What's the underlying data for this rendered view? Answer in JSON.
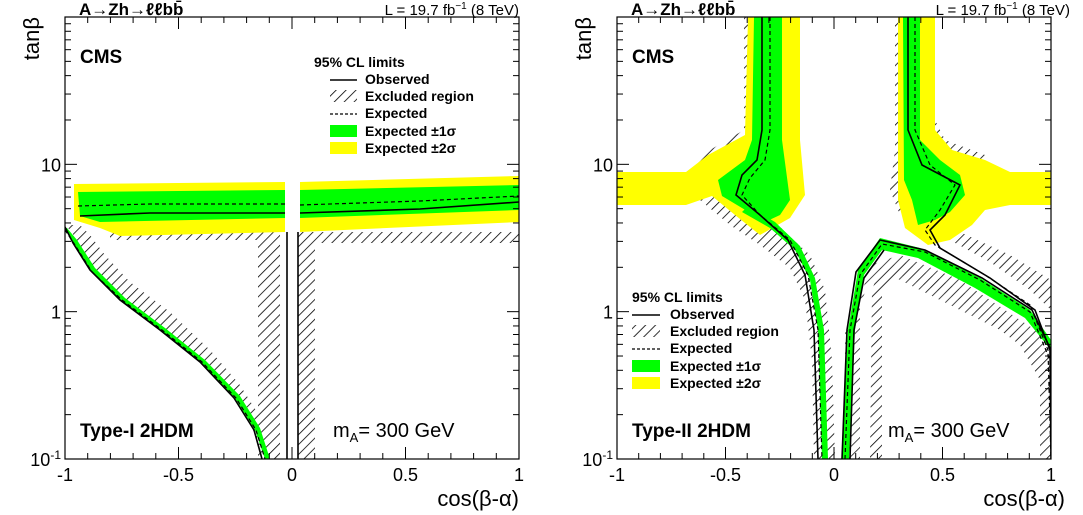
{
  "colors": {
    "sigma1": "#00ff00",
    "sigma2": "#ffff00",
    "observed": "#000000",
    "expected": "#000000"
  },
  "chart_data": [
    {
      "id": "type1",
      "type": "line",
      "process": "A→Zh→ℓℓbb̄",
      "luminosity": "L = 19.7 fb",
      "lumi_exp": "−1",
      "energy": "(8 TeV)",
      "experiment": "CMS",
      "model": "Type-I 2HDM",
      "mass_label_a": "m",
      "mass_label_sub": "A",
      "mass_label_b": "= 300 GeV",
      "xlabel": "cos(β-α)",
      "ylabel": "tanβ",
      "xlim": [
        -1,
        1
      ],
      "ylim": [
        0.1,
        100
      ],
      "log_y": true,
      "x_ticks": [
        {
          "v": -1,
          "t": "-1"
        },
        {
          "v": -0.5,
          "t": "-0.5"
        },
        {
          "v": 0,
          "t": "0"
        },
        {
          "v": 0.5,
          "t": "0.5"
        },
        {
          "v": 1,
          "t": "1"
        }
      ],
      "y_ticks": [
        {
          "v": 0.1,
          "t": "10",
          "sup": "-1"
        },
        {
          "v": 1,
          "t": "1"
        },
        {
          "v": 10,
          "t": "10"
        }
      ],
      "legend": {
        "title": "95% CL limits",
        "observed": "Observed",
        "excluded": "Excluded region",
        "expected": "Expected",
        "sigma1": "Expected ±1σ",
        "sigma2": "Expected ±2σ"
      },
      "observed": [
        {
          "name": "upper-left",
          "points": [
            [
              -0.96,
              4.9
            ],
            [
              -0.8,
              4.95
            ],
            [
              -0.6,
              5.0
            ],
            [
              -0.4,
              5.0
            ],
            [
              -0.2,
              5.0
            ],
            [
              -0.05,
              5.0
            ]
          ]
        },
        {
          "name": "upper-right",
          "points": [
            [
              0.05,
              4.8
            ],
            [
              0.3,
              4.8
            ],
            [
              0.6,
              4.9
            ],
            [
              0.8,
              5.0
            ],
            [
              1.0,
              5.3
            ]
          ]
        },
        {
          "name": "lower-left",
          "points": [
            [
              -1.0,
              3.3
            ],
            [
              -0.98,
              2.2
            ],
            [
              -0.93,
              1.5
            ],
            [
              -0.85,
              1.1
            ],
            [
              -0.75,
              0.85
            ],
            [
              -0.6,
              0.62
            ],
            [
              -0.4,
              0.42
            ],
            [
              -0.25,
              0.28
            ],
            [
              -0.15,
              0.16
            ],
            [
              -0.1,
              0.1
            ]
          ]
        },
        {
          "name": "center-left",
          "points": [
            [
              -0.04,
              0.1
            ],
            [
              -0.04,
              3.2
            ]
          ]
        },
        {
          "name": "center-right",
          "points": [
            [
              0.03,
              0.1
            ],
            [
              0.03,
              3.2
            ]
          ]
        }
      ],
      "expected": [
        {
          "name": "upper-left",
          "points": [
            [
              -0.95,
              5.4
            ],
            [
              -0.7,
              5.6
            ],
            [
              -0.4,
              5.7
            ],
            [
              -0.05,
              5.7
            ]
          ]
        },
        {
          "name": "upper-right",
          "points": [
            [
              0.05,
              5.6
            ],
            [
              0.4,
              5.7
            ],
            [
              0.8,
              5.9
            ],
            [
              1.0,
              6.2
            ]
          ]
        },
        {
          "name": "lower-left",
          "points": [
            [
              -1.0,
              3.5
            ],
            [
              -0.98,
              2.3
            ],
            [
              -0.93,
              1.6
            ],
            [
              -0.85,
              1.15
            ],
            [
              -0.75,
              0.88
            ],
            [
              -0.6,
              0.65
            ],
            [
              -0.4,
              0.44
            ],
            [
              -0.25,
              0.29
            ],
            [
              -0.15,
              0.17
            ],
            [
              -0.1,
              0.1
            ]
          ]
        }
      ],
      "band_1sigma": [
        {
          "name": "upper-left",
          "low": [
            [
              -0.96,
              4.6
            ],
            [
              -0.6,
              4.6
            ],
            [
              -0.05,
              4.5
            ]
          ],
          "high": [
            [
              -0.96,
              6.8
            ],
            [
              -0.6,
              7.0
            ],
            [
              -0.05,
              7.0
            ]
          ]
        },
        {
          "name": "upper-right",
          "low": [
            [
              0.05,
              4.5
            ],
            [
              0.5,
              4.6
            ],
            [
              1.0,
              5.0
            ]
          ],
          "high": [
            [
              0.05,
              6.9
            ],
            [
              0.5,
              7.1
            ],
            [
              1.0,
              7.5
            ]
          ]
        }
      ],
      "band_2sigma": [
        {
          "name": "upper-left",
          "low": [
            [
              -0.97,
              3.9
            ],
            [
              -0.6,
              4.0
            ],
            [
              -0.05,
              3.9
            ]
          ],
          "high": [
            [
              -0.97,
              7.6
            ],
            [
              -0.6,
              7.8
            ],
            [
              -0.05,
              7.8
            ]
          ]
        },
        {
          "name": "upper-right",
          "low": [
            [
              0.05,
              3.9
            ],
            [
              0.5,
              4.0
            ],
            [
              1.0,
              4.3
            ]
          ],
          "high": [
            [
              0.05,
              7.7
            ],
            [
              0.5,
              8.0
            ],
            [
              1.0,
              8.5
            ]
          ]
        }
      ]
    },
    {
      "id": "type2",
      "type": "line",
      "process": "A→Zh→ℓℓbb̄",
      "luminosity": "L = 19.7 fb",
      "lumi_exp": "−1",
      "energy": "(8 TeV)",
      "experiment": "CMS",
      "model": "Type-II 2HDM",
      "mass_label_a": "m",
      "mass_label_sub": "A",
      "mass_label_b": "= 300 GeV",
      "xlabel": "cos(β-α)",
      "ylabel": "tanβ",
      "xlim": [
        -1,
        1
      ],
      "ylim": [
        0.1,
        100
      ],
      "log_y": true,
      "x_ticks": [
        {
          "v": -1,
          "t": "-1"
        },
        {
          "v": -0.5,
          "t": "-0.5"
        },
        {
          "v": 0,
          "t": "0"
        },
        {
          "v": 0.5,
          "t": "0.5"
        },
        {
          "v": 1,
          "t": "1"
        }
      ],
      "y_ticks": [
        {
          "v": 0.1,
          "t": "10",
          "sup": "-1"
        },
        {
          "v": 1,
          "t": "1"
        },
        {
          "v": 10,
          "t": "10"
        }
      ],
      "legend": {
        "title": "95% CL limits",
        "observed": "Observed",
        "excluded": "Excluded region",
        "expected": "Expected",
        "sigma1": "Expected ±1σ",
        "sigma2": "Expected ±2σ"
      },
      "observed": [
        {
          "name": "left-tongue",
          "points": [
            [
              -0.3,
              100
            ],
            [
              -0.3,
              30
            ],
            [
              -0.31,
              15
            ],
            [
              -0.33,
              9
            ],
            [
              -0.42,
              7.2
            ],
            [
              -0.5,
              6.2
            ],
            [
              -0.48,
              5.2
            ],
            [
              -0.4,
              4.5
            ],
            [
              -0.28,
              3.3
            ],
            [
              -0.17,
              1.8
            ],
            [
              -0.1,
              0.7
            ],
            [
              -0.06,
              0.1
            ]
          ]
        },
        {
          "name": "right-tongue",
          "points": [
            [
              0.28,
              100
            ],
            [
              0.28,
              30
            ],
            [
              0.3,
              15
            ],
            [
              0.33,
              10
            ],
            [
              0.45,
              8.0
            ],
            [
              0.57,
              6.8
            ],
            [
              0.5,
              5.5
            ],
            [
              0.4,
              4.4
            ],
            [
              0.35,
              3.5
            ],
            [
              0.45,
              2.4
            ],
            [
              0.6,
              1.7
            ],
            [
              0.8,
              1.05
            ],
            [
              0.92,
              0.6
            ],
            [
              0.97,
              0.3
            ],
            [
              1.0,
              0.12
            ]
          ]
        },
        {
          "name": "center-left",
          "points": [
            [
              0.02,
              0.1
            ],
            [
              0.03,
              1.5
            ],
            [
              0.05,
              2.3
            ]
          ]
        },
        {
          "name": "center-right",
          "points": [
            [
              0.05,
              2.3
            ],
            [
              0.1,
              2.9
            ],
            [
              0.2,
              2.7
            ],
            [
              0.4,
              2.1
            ],
            [
              0.6,
              1.5
            ],
            [
              0.8,
              0.95
            ],
            [
              0.92,
              0.55
            ],
            [
              0.98,
              0.25
            ],
            [
              1.0,
              0.12
            ]
          ]
        }
      ],
      "expected": [
        {
          "name": "left-tongue",
          "points": [
            [
              -0.27,
              100
            ],
            [
              -0.27,
              30
            ],
            [
              -0.28,
              15
            ],
            [
              -0.3,
              9
            ],
            [
              -0.38,
              7.3
            ],
            [
              -0.45,
              6.5
            ],
            [
              -0.44,
              5.3
            ],
            [
              -0.37,
              4.6
            ],
            [
              -0.26,
              3.4
            ],
            [
              -0.16,
              1.9
            ],
            [
              -0.09,
              0.8
            ],
            [
              -0.05,
              0.1
            ]
          ]
        },
        {
          "name": "right-tongue",
          "points": [
            [
              0.31,
              100
            ],
            [
              0.31,
              30
            ],
            [
              0.32,
              15
            ],
            [
              0.35,
              10
            ],
            [
              0.47,
              8.1
            ],
            [
              0.55,
              6.8
            ],
            [
              0.48,
              5.5
            ],
            [
              0.42,
              4.4
            ],
            [
              0.38,
              3.5
            ],
            [
              0.47,
              2.5
            ],
            [
              0.62,
              1.75
            ],
            [
              0.82,
              1.07
            ],
            [
              0.94,
              0.62
            ],
            [
              0.98,
              0.3
            ],
            [
              1.0,
              0.13
            ]
          ]
        },
        {
          "name": "center",
          "points": [
            [
              0.03,
              0.1
            ],
            [
              0.04,
              1.6
            ],
            [
              0.07,
              2.5
            ],
            [
              0.12,
              3.0
            ],
            [
              0.25,
              2.8
            ],
            [
              0.45,
              2.1
            ],
            [
              0.65,
              1.45
            ],
            [
              0.85,
              0.9
            ],
            [
              0.95,
              0.5
            ],
            [
              1.0,
              0.14
            ]
          ]
        }
      ],
      "band_1sigma": [
        {
          "name": "left",
          "low": [
            [
              -0.54,
              5.5
            ],
            [
              -0.44,
              4.6
            ],
            [
              -0.3,
              3.6
            ],
            [
              -0.2,
              2.2
            ]
          ],
          "high": [
            [
              -0.2,
              100
            ],
            [
              -0.2,
              20
            ],
            [
              -0.22,
              10
            ],
            [
              -0.28,
              7.5
            ],
            [
              -0.38,
              8.2
            ],
            [
              -0.42,
              10
            ],
            [
              -0.45,
              30
            ],
            [
              -0.45,
              100
            ]
          ]
        },
        {
          "name": "right",
          "low": [
            [
              0.44,
              3.8
            ],
            [
              0.56,
              6.6
            ],
            [
              0.58,
              7.5
            ]
          ],
          "high": [
            [
              0.35,
              100
            ],
            [
              0.35,
              30
            ],
            [
              0.36,
              10
            ],
            [
              0.55,
              8.0
            ],
            [
              0.6,
              6.8
            ],
            [
              0.5,
              3.8
            ],
            [
              0.42,
              3.2
            ]
          ]
        }
      ],
      "band_2sigma": [
        {
          "name": "left",
          "low": [
            [
              -1.0,
              5.0
            ],
            [
              -0.7,
              5.2
            ],
            [
              -0.55,
              5.0
            ]
          ],
          "high": [
            [
              -1.0,
              8.5
            ],
            [
              -0.75,
              8.4
            ],
            [
              -0.6,
              10
            ],
            [
              -0.55,
              30
            ],
            [
              -0.55,
              100
            ]
          ]
        },
        {
          "name": "right",
          "low": [
            [
              0.6,
              5.5
            ],
            [
              0.8,
              5.0
            ],
            [
              1.0,
              5.0
            ]
          ],
          "high": [
            [
              0.4,
              100
            ],
            [
              0.4,
              30
            ],
            [
              0.65,
              10
            ],
            [
              0.8,
              8.4
            ],
            [
              1.0,
              8.5
            ]
          ]
        }
      ]
    }
  ]
}
